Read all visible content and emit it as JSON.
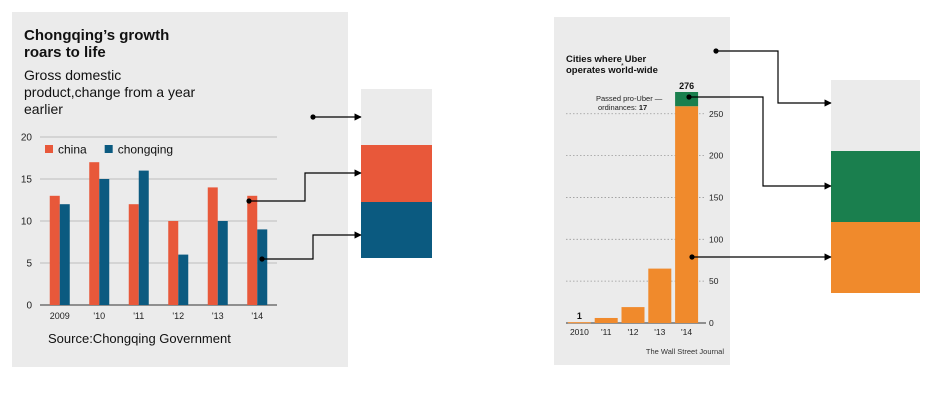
{
  "chart_data": [
    {
      "type": "bar",
      "title": "Chongqing’s growth roars to life",
      "subtitle": "Gross domestic product,change from a year earlier",
      "source": "Source:Chongqing Government",
      "categories": [
        "2009",
        "'10",
        "'11",
        "'12",
        "'13",
        "'14"
      ],
      "series": [
        {
          "name": "china",
          "values": [
            13,
            17,
            12,
            10,
            14,
            13
          ],
          "color": "#e8583a"
        },
        {
          "name": "chongqing",
          "values": [
            12,
            15,
            16,
            6,
            10,
            9
          ],
          "color": "#0b5a80"
        }
      ],
      "ylim": [
        0,
        20
      ],
      "yticks": [
        "0",
        "5",
        "10",
        "15",
        "20"
      ],
      "grid": true,
      "legend": "top-left",
      "background": "#ebebeb"
    },
    {
      "type": "bar",
      "title": "Cities where Uber operates world-wide",
      "title_note": "*",
      "credit": "The Wall Street Journal",
      "categories": [
        "2010",
        "'11",
        "'12",
        "'13",
        "'14"
      ],
      "values": [
        1,
        6,
        19,
        65,
        276
      ],
      "value_labels": [
        "1",
        "",
        "",
        "",
        "276"
      ],
      "stacked_segment": {
        "category": "'14",
        "value": 17,
        "label_line1": "Passed pro-Uber —",
        "label_line2": "ordinances:",
        "label_value": "17",
        "color": "#1a7f4e"
      },
      "bar_color": "#f08a2c",
      "ylim": [
        0,
        276
      ],
      "yticks": [
        "0",
        "50",
        "100",
        "150",
        "200",
        "250"
      ],
      "y_axis_side": "right",
      "grid": "dotted",
      "background": "#ebebeb"
    }
  ],
  "swatches_left": [
    "#ebebeb",
    "#e8583a",
    "#0b5a80"
  ],
  "swatches_right": [
    "#ebebeb",
    "#1a7f4e",
    "#f08a2c"
  ]
}
